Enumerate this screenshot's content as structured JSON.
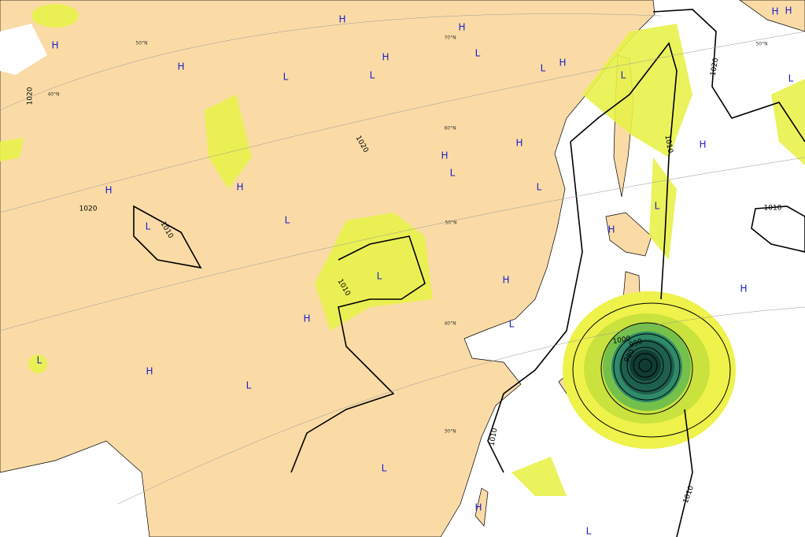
{
  "pressure_centers": [
    "H",
    "H",
    "H",
    "H",
    "H",
    "H",
    "H",
    "H",
    "H",
    "H",
    "H",
    "H",
    "H",
    "H",
    "H",
    "H",
    "H",
    "H",
    "H",
    "L",
    "L",
    "L",
    "L",
    "L",
    "L",
    "L",
    "L",
    "L",
    "L",
    "L",
    "L",
    "L",
    "L",
    "L",
    "L",
    "L"
  ],
  "isobar_labels": [
    "1020",
    "1020",
    "1020",
    "1020",
    "1010",
    "1010",
    "1010",
    "1010",
    "1010",
    "1010",
    "1000",
    "990",
    "980"
  ],
  "latitude_labels": [
    "50°N",
    "50°N",
    "50°N",
    "40°N",
    "40°N",
    "70°N",
    "60°N",
    "30°N"
  ]
}
